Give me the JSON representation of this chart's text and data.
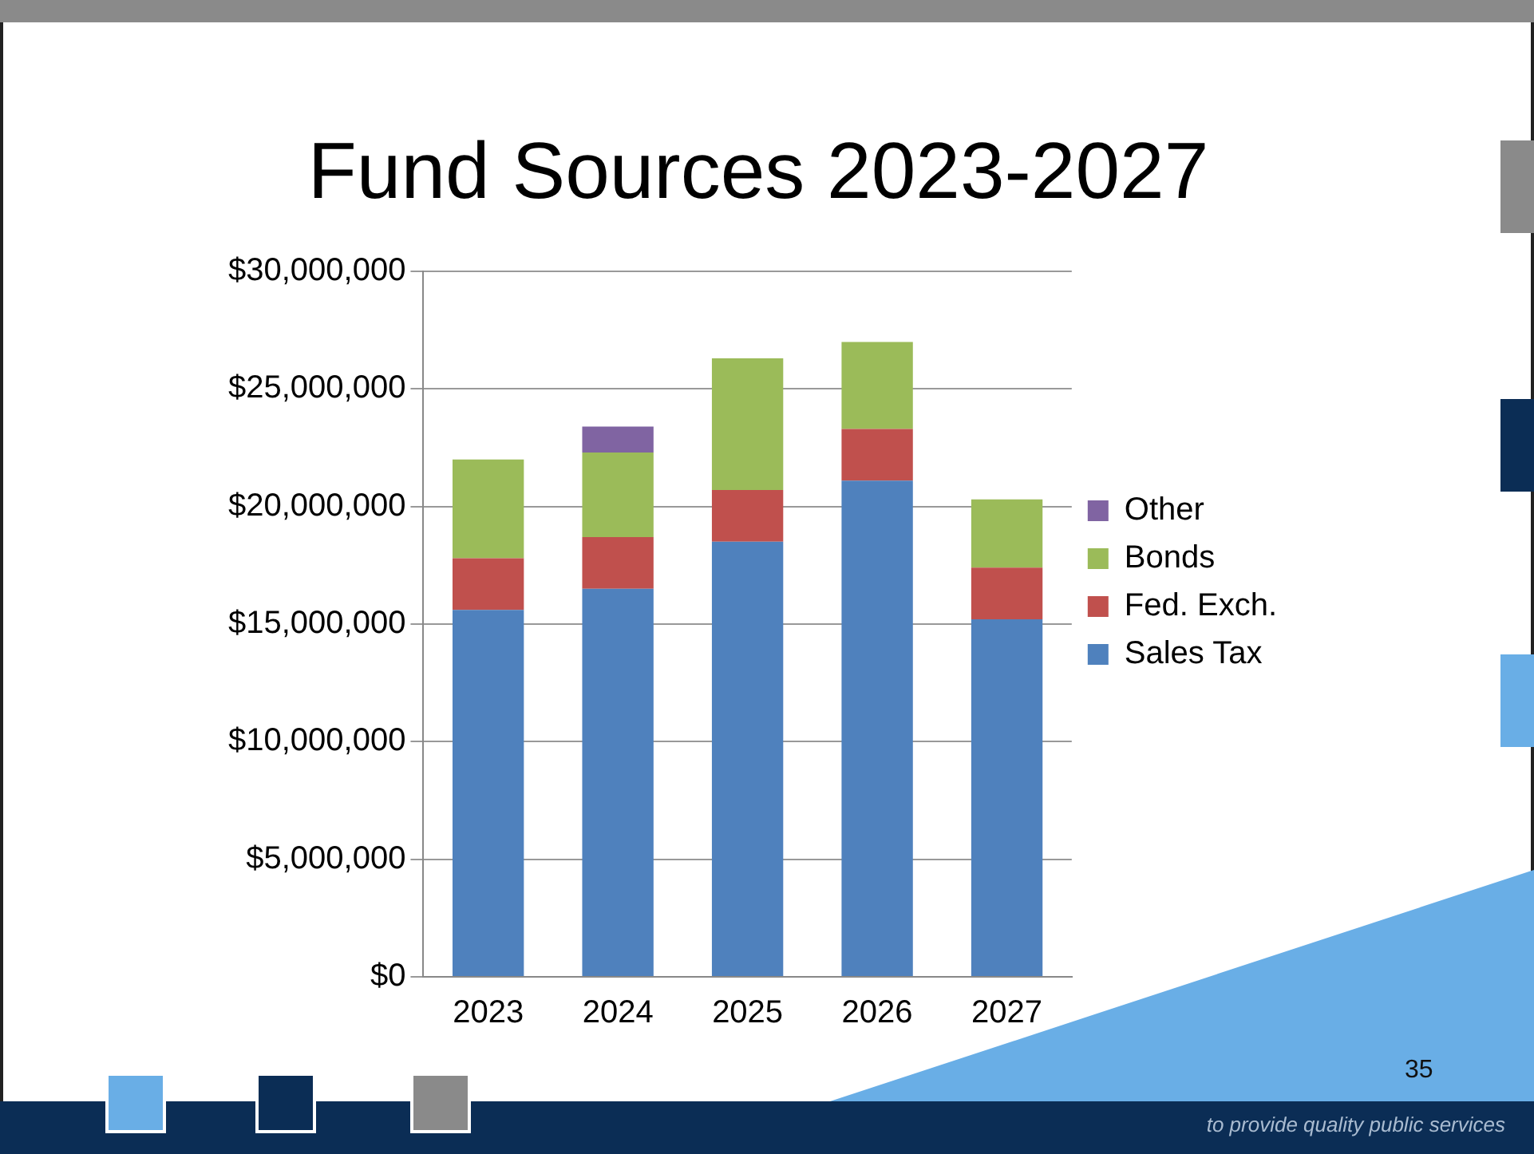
{
  "chart_data": {
    "type": "bar",
    "title": "Fund Sources 2023-2027",
    "categories": [
      "2023",
      "2024",
      "2025",
      "2026",
      "2027"
    ],
    "stacked": true,
    "legend": "right",
    "grid": "y",
    "series": [
      {
        "name": "Sales Tax",
        "color": "#4f81bd",
        "values": [
          15600000,
          16500000,
          18500000,
          21100000,
          15200000
        ]
      },
      {
        "name": "Fed. Exch.",
        "color": "#c0504d",
        "values": [
          2200000,
          2200000,
          2200000,
          2200000,
          2200000
        ]
      },
      {
        "name": "Bonds",
        "color": "#9bbb59",
        "values": [
          4200000,
          3600000,
          5600000,
          3700000,
          2900000
        ]
      },
      {
        "name": "Other",
        "color": "#8064a2",
        "values": [
          null,
          1100000,
          null,
          null,
          null
        ]
      }
    ],
    "ylim": [
      0,
      30000000
    ],
    "yticks": [
      {
        "value": 0,
        "label": "$0"
      },
      {
        "value": 5000000,
        "label": "$5,000,000"
      },
      {
        "value": 10000000,
        "label": "$10,000,000"
      },
      {
        "value": 15000000,
        "label": "$15,000,000"
      },
      {
        "value": 20000000,
        "label": "$20,000,000"
      },
      {
        "value": 25000000,
        "label": "$25,000,000"
      },
      {
        "value": 30000000,
        "label": "$30,000,000"
      }
    ],
    "annotations": [
      "35",
      "to provide quality public services"
    ]
  }
}
